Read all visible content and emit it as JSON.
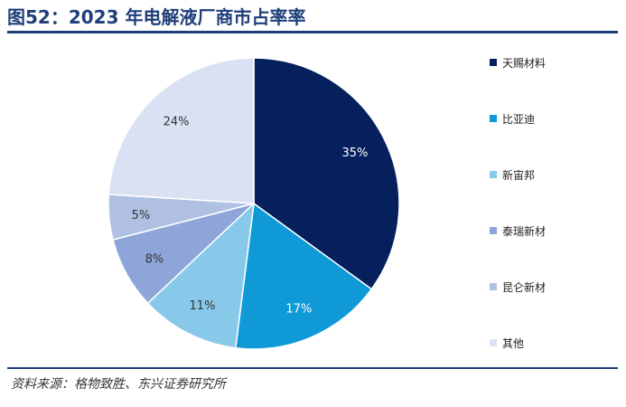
{
  "title": "图52：2023 年电解液厂商市占率率",
  "source": "资料来源：格物致胜、东兴证券研究所",
  "chart_data": {
    "type": "pie",
    "title": "图52：2023 年电解液厂商市占率率",
    "labels": [
      "天赐材料",
      "比亚迪",
      "新宙邦",
      "泰瑞新材",
      "昆仑新材",
      "其他"
    ],
    "values": [
      35,
      17,
      11,
      8,
      5,
      24
    ],
    "value_labels": [
      "35%",
      "17%",
      "11%",
      "8%",
      "5%",
      "24%"
    ],
    "colors": [
      "#06205e",
      "#0f9ad7",
      "#88c9ea",
      "#8ea5da",
      "#b0c0e3",
      "#d9e1f2"
    ],
    "label_colors": [
      "#ffffff",
      "#ffffff",
      "#333333",
      "#333333",
      "#333333",
      "#333333"
    ],
    "legend_position": "right"
  }
}
